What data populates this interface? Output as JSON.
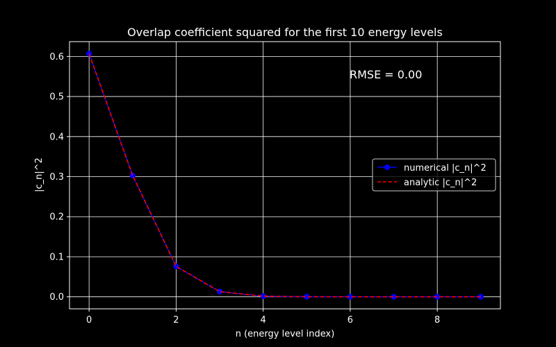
{
  "chart_data": {
    "type": "line",
    "title": "Overlap coefficient squared for the first 10 energy levels",
    "xlabel": "n (energy level index)",
    "ylabel": "|c_n|^2",
    "xlim": [
      -0.45,
      9.45
    ],
    "ylim": [
      -0.03,
      0.637
    ],
    "xticks": [
      0,
      2,
      4,
      6,
      8
    ],
    "yticks": [
      0.0,
      0.1,
      0.2,
      0.3,
      0.4,
      0.5,
      0.6
    ],
    "xtick_labels": [
      "0",
      "2",
      "4",
      "6",
      "8"
    ],
    "ytick_labels": [
      "0.0",
      "0.1",
      "0.2",
      "0.3",
      "0.4",
      "0.5",
      "0.6"
    ],
    "grid": true,
    "legend_position": "center-right",
    "annotation": "RMSE = 0.00",
    "x": [
      0,
      1,
      2,
      3,
      4,
      5,
      6,
      7,
      8,
      9
    ],
    "series": [
      {
        "name": "numerical |c_n|^2",
        "values": [
          0.607,
          0.303,
          0.076,
          0.013,
          0.0016,
          0.0002,
          0.0,
          0.0,
          0.0,
          0.0
        ],
        "color": "#0000ff",
        "style": "solid-markers"
      },
      {
        "name": "analytic |c_n|^2",
        "values": [
          0.607,
          0.303,
          0.076,
          0.013,
          0.0016,
          0.0002,
          0.0,
          0.0,
          0.0,
          0.0
        ],
        "color": "#ff0000",
        "style": "dashed"
      }
    ]
  }
}
